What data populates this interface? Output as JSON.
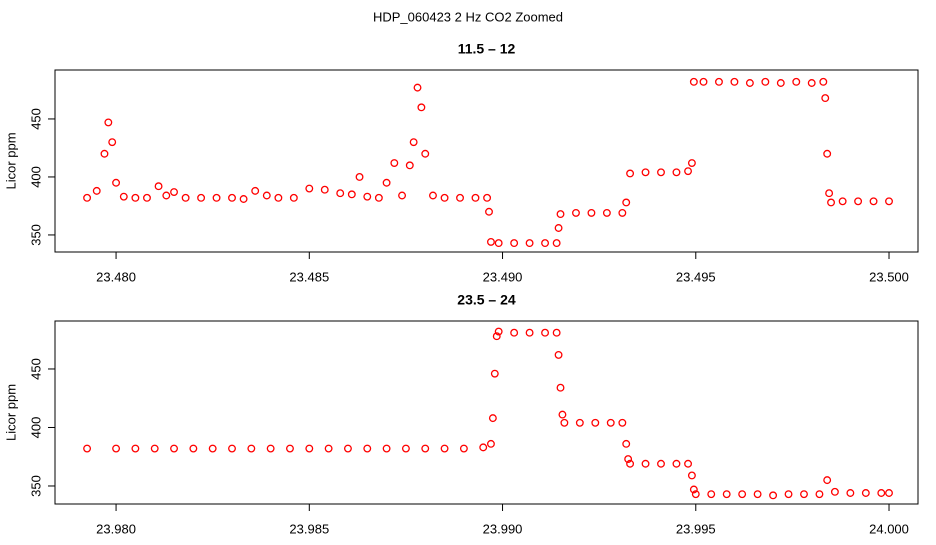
{
  "title": "HDP_060423  2 Hz CO2 Zoomed",
  "chart_data": [
    {
      "type": "scatter",
      "title": "11.5 – 12",
      "ylabel": "Licor ppm",
      "color": "#ff0000",
      "xlim": [
        23.47842,
        23.50075
      ],
      "ylim": [
        335.3,
        492.2
      ],
      "xticks": [
        {
          "value": 23.48,
          "label": "23.480"
        },
        23.485,
        {
          "value": 23.49,
          "label": "23.490"
        },
        23.495,
        {
          "value": 23.5,
          "label": "23.500"
        }
      ],
      "yticks": [
        350,
        400,
        450
      ],
      "x": [
        23.47925,
        23.4795,
        23.4797,
        23.4798,
        23.4799,
        23.48,
        23.4802,
        23.4805,
        23.4808,
        23.4811,
        23.4813,
        23.4815,
        23.4818,
        23.4822,
        23.4826,
        23.483,
        23.4833,
        23.4836,
        23.4839,
        23.4842,
        23.4846,
        23.485,
        23.4854,
        23.4858,
        23.4861,
        23.4863,
        23.4865,
        23.4868,
        23.487,
        23.4872,
        23.4874,
        23.4876,
        23.4877,
        23.4878,
        23.4879,
        23.488,
        23.4882,
        23.4885,
        23.4889,
        23.4893,
        23.4896,
        23.48965,
        23.4897,
        23.4899,
        23.4903,
        23.4907,
        23.4911,
        23.4914,
        23.49145,
        23.4915,
        23.4919,
        23.4923,
        23.4927,
        23.4931,
        23.4932,
        23.4933,
        23.4937,
        23.4941,
        23.4945,
        23.4948,
        23.4949,
        23.49495,
        23.4952,
        23.4956,
        23.496,
        23.4964,
        23.4968,
        23.4972,
        23.4976,
        23.498,
        23.4983,
        23.49835,
        23.4984,
        23.49845,
        23.4985,
        23.4988,
        23.4992,
        23.4996,
        23.5
      ],
      "values": [
        382,
        388,
        420,
        447,
        430,
        395,
        383,
        382,
        382,
        392,
        384,
        387,
        382,
        382,
        382,
        382,
        381,
        388,
        384,
        382,
        382,
        390,
        389,
        386,
        385,
        400,
        383,
        382,
        395,
        412,
        384,
        410,
        430,
        477,
        460,
        420,
        384,
        382,
        382,
        382,
        382,
        370,
        344,
        343,
        343,
        343,
        343,
        343,
        356,
        368,
        369,
        369,
        369,
        369,
        378,
        403,
        404,
        404,
        404,
        405,
        412,
        482,
        482,
        482,
        482,
        481,
        482,
        481,
        482,
        481,
        482,
        468,
        420,
        386,
        378,
        379,
        379,
        379,
        379
      ]
    },
    {
      "type": "scatter",
      "title": "23.5 – 24",
      "ylabel": "Licor ppm",
      "color": "#ff0000",
      "xlim": [
        23.97842,
        24.00075
      ],
      "ylim": [
        334.6,
        491
      ],
      "xticks": [
        {
          "value": 23.98,
          "label": "23.980"
        },
        23.985,
        {
          "value": 23.99,
          "label": "23.990"
        },
        23.995,
        {
          "value": 24,
          "label": "24.000"
        }
      ],
      "yticks": [
        350,
        400,
        450
      ],
      "x": [
        23.97925,
        23.98,
        23.9805,
        23.981,
        23.9815,
        23.982,
        23.9825,
        23.983,
        23.9835,
        23.984,
        23.9845,
        23.985,
        23.9855,
        23.986,
        23.9865,
        23.987,
        23.9875,
        23.988,
        23.9885,
        23.989,
        23.9895,
        23.9897,
        23.98975,
        23.9898,
        23.98985,
        23.9899,
        23.9903,
        23.9907,
        23.9911,
        23.9914,
        23.99145,
        23.9915,
        23.99155,
        23.9916,
        23.992,
        23.9924,
        23.9928,
        23.9931,
        23.9932,
        23.99325,
        23.9933,
        23.9937,
        23.9941,
        23.9945,
        23.9948,
        23.9949,
        23.99495,
        23.995,
        23.9954,
        23.9958,
        23.9962,
        23.9966,
        23.997,
        23.9974,
        23.9978,
        23.9982,
        23.9984,
        23.9986,
        23.999,
        23.9994,
        23.9998,
        24.0
      ],
      "values": [
        382,
        382,
        382,
        382,
        382,
        382,
        382,
        382,
        382,
        382,
        382,
        382,
        382,
        382,
        382,
        382,
        382,
        382,
        382,
        382,
        383,
        386,
        408,
        446,
        478,
        482,
        481,
        481,
        481,
        481,
        462,
        434,
        411,
        404,
        404,
        404,
        404,
        404,
        386,
        373,
        369,
        369,
        369,
        369,
        369,
        359,
        347,
        343,
        343,
        343,
        343,
        343,
        342,
        343,
        343,
        343,
        355,
        345,
        344,
        344,
        344,
        344
      ]
    }
  ]
}
